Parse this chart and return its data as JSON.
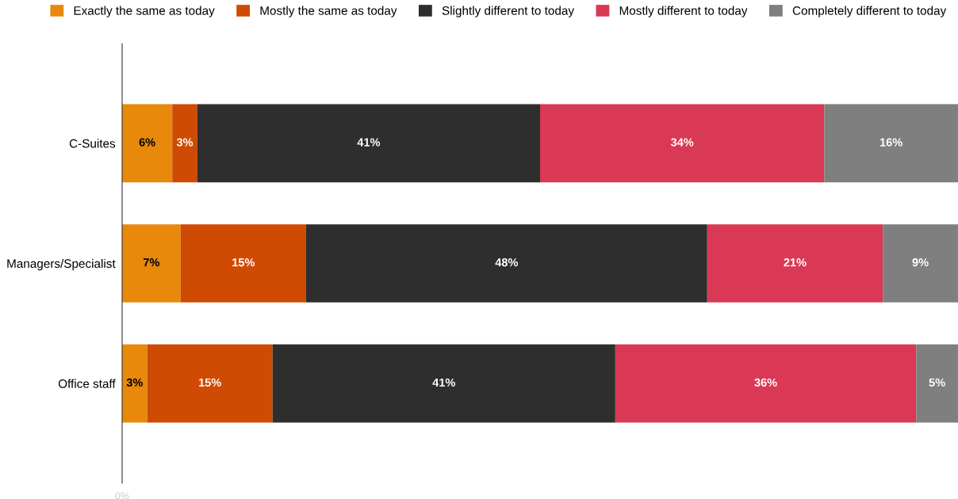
{
  "chart_data": {
    "type": "bar",
    "orientation": "horizontal",
    "stacked": true,
    "legend": "top",
    "grid": false,
    "categories": [
      "C-Suites",
      "Managers/Specialist",
      "Office staff"
    ],
    "xlim": [
      0,
      100
    ],
    "annotations": [
      "0%"
    ],
    "series": [
      {
        "name": "Exactly the same as today",
        "color": "#e8890c",
        "values": [
          6,
          7,
          3
        ],
        "value_labels": [
          "6%",
          "7%",
          "3%"
        ]
      },
      {
        "name": "Mostly the same as today",
        "color": "#cf4a02",
        "values": [
          3,
          15,
          15
        ],
        "value_labels": [
          "3%",
          "15%",
          "15%"
        ]
      },
      {
        "name": "Slightly different to today",
        "color": "#2e2e2e",
        "values": [
          41,
          48,
          41
        ],
        "value_labels": [
          "41%",
          "48%",
          "41%"
        ]
      },
      {
        "name": "Mostly different to today",
        "color": "#d93954",
        "values": [
          34,
          21,
          36
        ],
        "value_labels": [
          "34%",
          "21%",
          "36%"
        ]
      },
      {
        "name": "Completely different to today",
        "color": "#7f7f7f",
        "values": [
          16,
          9,
          5
        ],
        "value_labels": [
          "16%",
          "9%",
          "5%"
        ]
      }
    ]
  }
}
